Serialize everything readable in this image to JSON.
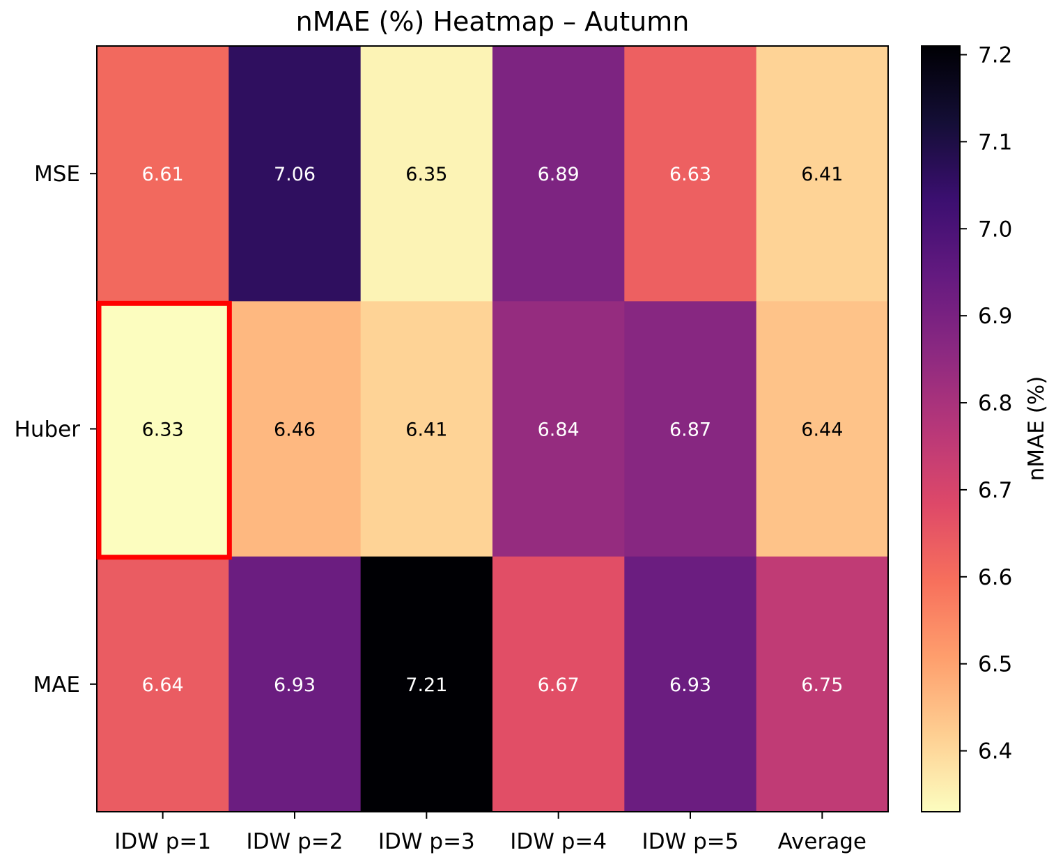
{
  "chart_data": {
    "type": "heatmap",
    "title": "nMAE (%) Heatmap – Autumn",
    "xlabel": "",
    "ylabel": "",
    "x_categories": [
      "IDW p=1",
      "IDW p=2",
      "IDW p=3",
      "IDW p=4",
      "IDW p=5",
      "Average"
    ],
    "y_categories": [
      "MSE",
      "Huber",
      "MAE"
    ],
    "values": [
      [
        6.61,
        7.06,
        6.35,
        6.89,
        6.63,
        6.41
      ],
      [
        6.33,
        6.46,
        6.41,
        6.84,
        6.87,
        6.44
      ],
      [
        6.64,
        6.93,
        7.21,
        6.67,
        6.93,
        6.75
      ]
    ],
    "value_labels": [
      [
        "6.61",
        "7.06",
        "6.35",
        "6.89",
        "6.63",
        "6.41"
      ],
      [
        "6.33",
        "6.46",
        "6.41",
        "6.84",
        "6.87",
        "6.44"
      ],
      [
        "6.64",
        "6.93",
        "7.21",
        "6.67",
        "6.93",
        "6.75"
      ]
    ],
    "colormap": "magma_r",
    "vmin": 6.33,
    "vmax": 7.21,
    "colorbar": {
      "label": "nMAE (%)",
      "ticks": [
        6.4,
        6.5,
        6.6,
        6.7,
        6.8,
        6.9,
        7.0,
        7.1,
        7.2
      ],
      "tick_labels": [
        "6.4",
        "6.5",
        "6.6",
        "6.7",
        "6.8",
        "6.9",
        "7.0",
        "7.1",
        "7.2"
      ]
    },
    "highlight": {
      "row": 1,
      "col": 0,
      "color": "#ff0000"
    }
  }
}
